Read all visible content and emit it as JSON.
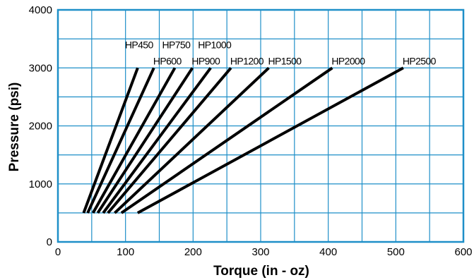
{
  "chart_data": {
    "type": "line",
    "title": "",
    "xlabel": "Torque (in - oz)",
    "ylabel": "Pressure (psi)",
    "xlim": [
      0,
      600
    ],
    "ylim": [
      0,
      4000
    ],
    "xticks": [
      0,
      100,
      200,
      300,
      400,
      500,
      600
    ],
    "yticks": [
      0,
      1000,
      2000,
      3000,
      4000
    ],
    "x_tick_labels": [
      "0",
      "100",
      "200",
      "300",
      "400",
      "500",
      "600"
    ],
    "y_tick_labels": [
      "0",
      "1000",
      "2000",
      "3000",
      "4000"
    ],
    "grid": true,
    "legend": "none (series labelled at line ends)",
    "series": [
      {
        "name": "HP450",
        "x": [
          38,
          118
        ],
        "y": [
          500,
          3000
        ]
      },
      {
        "name": "HP600",
        "x": [
          44,
          142
        ],
        "y": [
          500,
          3000
        ]
      },
      {
        "name": "HP750",
        "x": [
          52,
          173
        ],
        "y": [
          500,
          3000
        ]
      },
      {
        "name": "HP900",
        "x": [
          59,
          199
        ],
        "y": [
          500,
          3000
        ]
      },
      {
        "name": "HP1000",
        "x": [
          67,
          226
        ],
        "y": [
          500,
          3000
        ]
      },
      {
        "name": "HP1200",
        "x": [
          74,
          256
        ],
        "y": [
          500,
          3000
        ]
      },
      {
        "name": "HP1500",
        "x": [
          84,
          312
        ],
        "y": [
          500,
          3000
        ]
      },
      {
        "name": "HP2000",
        "x": [
          94,
          406
        ],
        "y": [
          500,
          3000
        ]
      },
      {
        "name": "HP2500",
        "x": [
          118,
          511
        ],
        "y": [
          500,
          3000
        ]
      }
    ]
  },
  "colors": {
    "frame": "#1e8fc8",
    "grid": "#1e8fc8",
    "line": "#000000",
    "text": "#000000",
    "background": "#ffffff"
  }
}
